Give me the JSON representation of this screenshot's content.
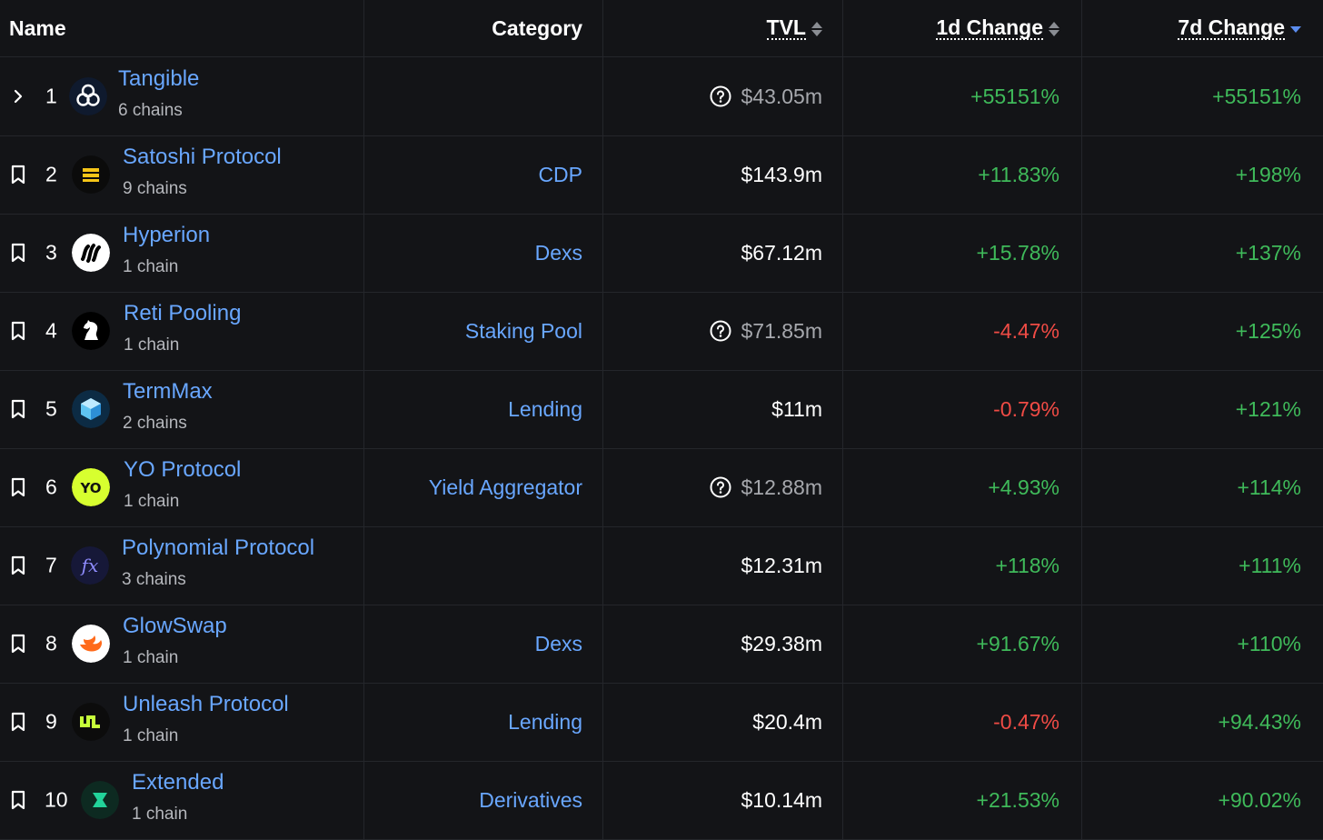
{
  "header": {
    "name": "Name",
    "category": "Category",
    "tvl": "TVL",
    "change_1d": "1d Change",
    "change_7d": "7d Change"
  },
  "rows": [
    {
      "rank": "1",
      "name": "Tangible",
      "chains": "6 chains",
      "category": "",
      "tvl": "$43.05m",
      "tvl_flag": true,
      "change_1d": "+55151%",
      "change_7d": "+55151%",
      "lead_icon": "chevron-right-icon",
      "logo": "tangible-logo"
    },
    {
      "rank": "2",
      "name": "Satoshi Protocol",
      "chains": "9 chains",
      "category": "CDP",
      "tvl": "$143.9m",
      "tvl_flag": false,
      "change_1d": "+11.83%",
      "change_7d": "+198%",
      "lead_icon": "bookmark-icon",
      "logo": "satoshi-logo"
    },
    {
      "rank": "3",
      "name": "Hyperion",
      "chains": "1 chain",
      "category": "Dexs",
      "tvl": "$67.12m",
      "tvl_flag": false,
      "change_1d": "+15.78%",
      "change_7d": "+137%",
      "lead_icon": "bookmark-icon",
      "logo": "hyperion-logo"
    },
    {
      "rank": "4",
      "name": "Reti Pooling",
      "chains": "1 chain",
      "category": "Staking Pool",
      "tvl": "$71.85m",
      "tvl_flag": true,
      "change_1d": "-4.47%",
      "change_7d": "+125%",
      "lead_icon": "bookmark-icon",
      "logo": "reti-logo"
    },
    {
      "rank": "5",
      "name": "TermMax",
      "chains": "2 chains",
      "category": "Lending",
      "tvl": "$11m",
      "tvl_flag": false,
      "change_1d": "-0.79%",
      "change_7d": "+121%",
      "lead_icon": "bookmark-icon",
      "logo": "termmax-logo"
    },
    {
      "rank": "6",
      "name": "YO Protocol",
      "chains": "1 chain",
      "category": "Yield Aggregator",
      "tvl": "$12.88m",
      "tvl_flag": true,
      "change_1d": "+4.93%",
      "change_7d": "+114%",
      "lead_icon": "bookmark-icon",
      "logo": "yo-logo"
    },
    {
      "rank": "7",
      "name": "Polynomial Protocol",
      "chains": "3 chains",
      "category": "",
      "tvl": "$12.31m",
      "tvl_flag": false,
      "change_1d": "+118%",
      "change_7d": "+111%",
      "lead_icon": "bookmark-icon",
      "logo": "polynomial-logo"
    },
    {
      "rank": "8",
      "name": "GlowSwap",
      "chains": "1 chain",
      "category": "Dexs",
      "tvl": "$29.38m",
      "tvl_flag": false,
      "change_1d": "+91.67%",
      "change_7d": "+110%",
      "lead_icon": "bookmark-icon",
      "logo": "glowswap-logo"
    },
    {
      "rank": "9",
      "name": "Unleash Protocol",
      "chains": "1 chain",
      "category": "Lending",
      "tvl": "$20.4m",
      "tvl_flag": false,
      "change_1d": "-0.47%",
      "change_7d": "+94.43%",
      "lead_icon": "bookmark-icon",
      "logo": "unleash-logo"
    },
    {
      "rank": "10",
      "name": "Extended",
      "chains": "1 chain",
      "category": "Derivatives",
      "tvl": "$10.14m",
      "tvl_flag": false,
      "change_1d": "+21.53%",
      "change_7d": "+90.02%",
      "lead_icon": "bookmark-icon",
      "logo": "extended-logo"
    }
  ],
  "sort": {
    "column": "7d Change",
    "direction": "descending"
  },
  "colors": {
    "background": "#131417",
    "border": "#24262b",
    "link": "#69a7ff",
    "positive": "#3fba5a",
    "negative": "#ef4b45",
    "sort_active": "#5b8def"
  }
}
